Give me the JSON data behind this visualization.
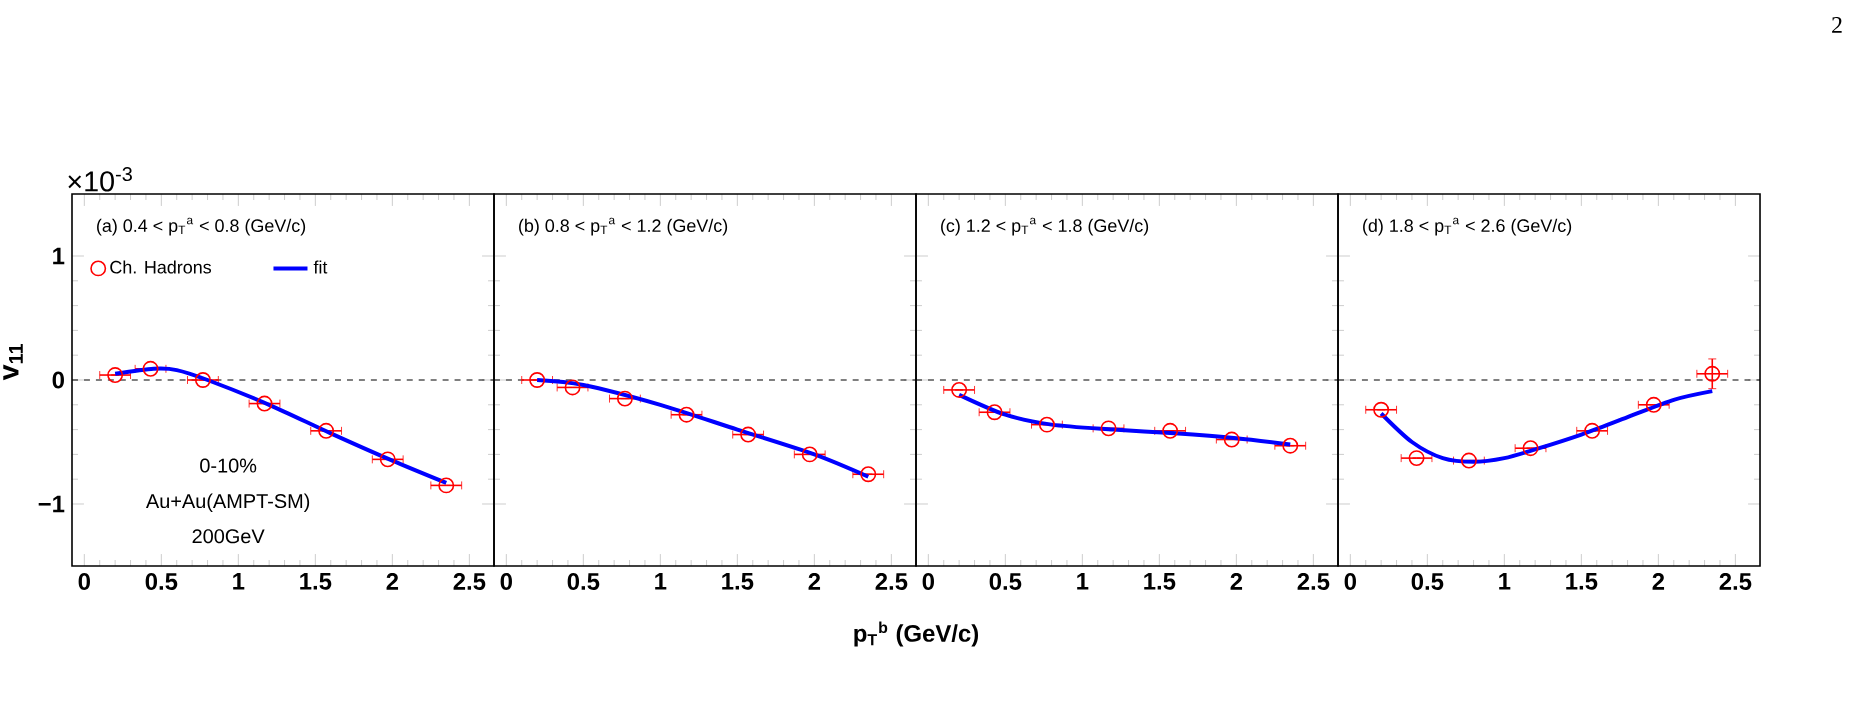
{
  "chart_data": [
    {
      "type": "scatter",
      "title": "(a) 0.4 < p$_{T}$$^{a}$ < 0.8 (GeV/c)",
      "ylabel": "v$_{11}$",
      "annotations": [
        "×10$^{-3}$",
        "0-10%",
        "Au+Au(AMPT-SM)",
        "200GeV"
      ],
      "xlim": [
        -0.08,
        2.66
      ],
      "ylim": [
        -1.5,
        1.5
      ],
      "xticks": [
        0,
        0.5,
        1,
        1.5,
        2,
        2.5
      ],
      "yticks": [
        {
          "value": -1,
          "label": "−1"
        },
        0,
        1
      ],
      "ref_lines": [
        {
          "axis": "y",
          "value": 0,
          "line_style": "dashed"
        }
      ],
      "legend": "top left",
      "series": [
        {
          "name": "Ch. Hadrons",
          "marker": "circle",
          "color": "#ff0000",
          "x": [
            0.2,
            0.43,
            0.77,
            1.17,
            1.57,
            1.97,
            2.35
          ],
          "values": [
            0.04,
            0.09,
            0.0,
            -0.19,
            -0.41,
            -0.64,
            -0.85
          ],
          "xerrors": [
            0.1,
            0.1,
            0.1,
            0.1,
            0.1,
            0.1,
            0.1
          ]
        },
        {
          "name": "fit",
          "type": "line",
          "line_style": "solid",
          "color": "#0000ff",
          "x": [
            0.2,
            0.45,
            0.6,
            0.8,
            1.2,
            1.6,
            2.0,
            2.35
          ],
          "values": [
            0.05,
            0.09,
            0.08,
            0.0,
            -0.2,
            -0.43,
            -0.65,
            -0.83
          ]
        }
      ]
    },
    {
      "type": "scatter",
      "title": "(b) 0.8 < p$_{T}$$^{a}$ < 1.2 (GeV/c)",
      "xlabel": "p$_{T}$$^{b}$ (GeV/c)",
      "xlim": [
        -0.08,
        2.66
      ],
      "ylim": [
        -1.5,
        1.5
      ],
      "xticks": [
        0,
        0.5,
        1,
        1.5,
        2,
        2.5
      ],
      "yticks": [
        {
          "value": -1,
          "label": null
        },
        {
          "value": 0,
          "label": null
        },
        {
          "value": 1,
          "label": null
        }
      ],
      "tick_labels": "x",
      "ref_lines": [
        {
          "axis": "y",
          "value": 0,
          "line_style": "dashed"
        }
      ],
      "series": [
        {
          "marker": "circle",
          "color": "#ff0000",
          "x": [
            0.2,
            0.43,
            0.77,
            1.17,
            1.57,
            1.97,
            2.35
          ],
          "values": [
            0.0,
            -0.06,
            -0.15,
            -0.28,
            -0.44,
            -0.6,
            -0.76
          ],
          "xerrors": [
            0.1,
            0.1,
            0.1,
            0.1,
            0.1,
            0.1,
            0.1
          ]
        },
        {
          "type": "line",
          "line_style": "solid",
          "color": "#0000ff",
          "x": [
            0.2,
            0.5,
            1.0,
            1.5,
            2.0,
            2.35
          ],
          "values": [
            0.0,
            -0.04,
            -0.2,
            -0.4,
            -0.6,
            -0.78
          ]
        }
      ]
    },
    {
      "type": "scatter",
      "title": "(c) 1.2 < p$_{T}$$^{a}$ < 1.8 (GeV/c)",
      "xlim": [
        -0.08,
        2.66
      ],
      "ylim": [
        -1.5,
        1.5
      ],
      "xticks": [
        0,
        0.5,
        1,
        1.5,
        2,
        2.5
      ],
      "yticks": [
        {
          "value": -1,
          "label": null
        },
        {
          "value": 0,
          "label": null
        },
        {
          "value": 1,
          "label": null
        }
      ],
      "tick_labels": "x",
      "ref_lines": [
        {
          "axis": "y",
          "value": 0,
          "line_style": "dashed"
        }
      ],
      "series": [
        {
          "marker": "circle",
          "color": "#ff0000",
          "x": [
            0.2,
            0.43,
            0.77,
            1.17,
            1.57,
            1.97,
            2.35
          ],
          "values": [
            -0.08,
            -0.26,
            -0.36,
            -0.39,
            -0.41,
            -0.48,
            -0.53
          ],
          "xerrors": [
            0.1,
            0.1,
            0.1,
            0.1,
            0.1,
            0.1,
            0.1
          ]
        },
        {
          "type": "line",
          "line_style": "solid",
          "color": "#0000ff",
          "x": [
            0.2,
            0.5,
            0.8,
            1.2,
            1.6,
            2.0,
            2.35
          ],
          "values": [
            -0.12,
            -0.28,
            -0.36,
            -0.4,
            -0.43,
            -0.47,
            -0.52
          ]
        }
      ]
    },
    {
      "type": "scatter",
      "title": "(d) 1.8 < p$_{T}$$^{a}$ < 2.6 (GeV/c)",
      "annotations": [
        "2"
      ],
      "xlim": [
        -0.08,
        2.66
      ],
      "ylim": [
        -1.5,
        1.5
      ],
      "xticks": [
        0,
        0.5,
        1,
        1.5,
        2,
        2.5
      ],
      "yticks": [
        {
          "value": -1,
          "label": null
        },
        {
          "value": 0,
          "label": null
        },
        {
          "value": 1,
          "label": null
        }
      ],
      "tick_labels": "x",
      "ref_lines": [
        {
          "axis": "y",
          "value": 0,
          "line_style": "dashed"
        }
      ],
      "series": [
        {
          "marker": "circle",
          "color": "#ff0000",
          "x": [
            0.2,
            0.43,
            0.77,
            1.17,
            1.57,
            1.97,
            2.35
          ],
          "values": [
            -0.24,
            -0.63,
            -0.65,
            -0.55,
            -0.41,
            -0.2,
            0.05
          ],
          "xerrors": [
            0.1,
            0.1,
            0.1,
            0.1,
            0.1,
            0.1,
            0.1
          ],
          "errors": [
            null,
            null,
            null,
            null,
            null,
            null,
            0.12
          ]
        },
        {
          "type": "line",
          "line_style": "solid",
          "color": "#0000ff",
          "x": [
            0.2,
            0.4,
            0.6,
            0.8,
            1.0,
            1.2,
            1.5,
            1.8,
            2.1,
            2.35
          ],
          "values": [
            -0.27,
            -0.5,
            -0.63,
            -0.66,
            -0.63,
            -0.56,
            -0.44,
            -0.3,
            -0.16,
            -0.09
          ]
        }
      ]
    }
  ]
}
